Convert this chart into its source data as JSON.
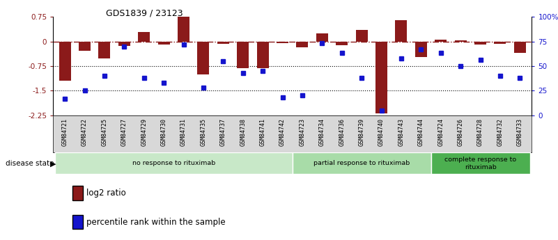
{
  "title": "GDS1839 / 23123",
  "samples": [
    "GSM84721",
    "GSM84722",
    "GSM84725",
    "GSM84727",
    "GSM84729",
    "GSM84730",
    "GSM84731",
    "GSM84735",
    "GSM84737",
    "GSM84738",
    "GSM84741",
    "GSM84742",
    "GSM84723",
    "GSM84734",
    "GSM84736",
    "GSM84739",
    "GSM84740",
    "GSM84743",
    "GSM84744",
    "GSM84724",
    "GSM84726",
    "GSM84728",
    "GSM84732",
    "GSM84733"
  ],
  "log2_ratio": [
    -1.2,
    -0.28,
    -0.52,
    -0.14,
    0.28,
    -0.1,
    0.75,
    -1.0,
    -0.07,
    -0.82,
    -0.82,
    -0.05,
    -0.17,
    0.25,
    -0.12,
    0.36,
    -2.2,
    0.65,
    -0.48,
    0.05,
    0.03,
    -0.1,
    -0.08,
    -0.35
  ],
  "percentile": [
    17,
    25,
    40,
    70,
    38,
    33,
    72,
    28,
    55,
    43,
    45,
    18,
    20,
    73,
    63,
    38,
    5,
    58,
    67,
    63,
    50,
    56,
    40,
    38
  ],
  "groups": [
    {
      "label": "no response to rituximab",
      "start": 0,
      "end": 12,
      "color": "#c8e8c8"
    },
    {
      "label": "partial response to rituximab",
      "start": 12,
      "end": 19,
      "color": "#a8dca8"
    },
    {
      "label": "complete response to\nrituximab",
      "start": 19,
      "end": 24,
      "color": "#4caf50"
    }
  ],
  "bar_color": "#8b1a1a",
  "dot_color": "#1414cd",
  "ylim_left": [
    -2.25,
    0.75
  ],
  "left_ticks": [
    0.75,
    0,
    -0.75,
    -1.5,
    -2.25
  ],
  "right_ticks_pct": [
    100,
    75,
    50,
    25,
    0
  ],
  "hline_dotted": [
    -0.75,
    -1.5
  ],
  "tick_color_left": "#8b1a1a",
  "tick_color_right": "#1414cd",
  "label_fontsize": 7,
  "tick_fontsize": 7.5,
  "sample_fontsize": 6
}
